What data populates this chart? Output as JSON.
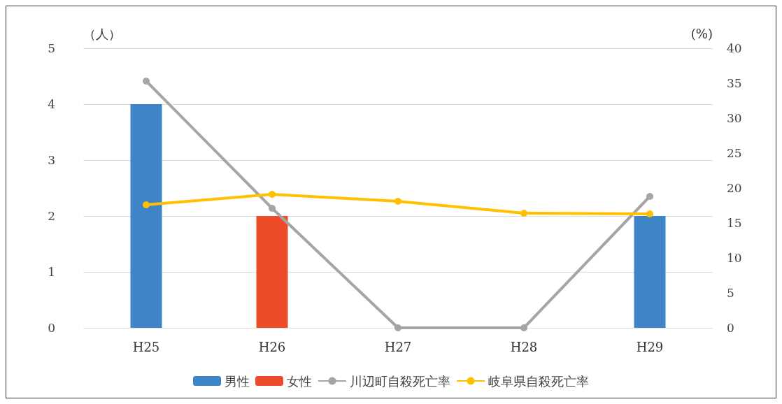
{
  "chart_data": {
    "type": "bar",
    "categories": [
      "H25",
      "H26",
      "H27",
      "H28",
      "H29"
    ],
    "ylabel": "（人）",
    "y2label": "(%)",
    "stacked": true,
    "ylim": [
      0,
      5
    ],
    "yticks": [
      0,
      1,
      2,
      3,
      4,
      5
    ],
    "y2lim": [
      0,
      40
    ],
    "y2ticks": [
      0,
      5,
      10,
      15,
      20,
      25,
      30,
      35,
      40
    ],
    "grid": "y",
    "legend": "bottom",
    "marker": "circle",
    "series": [
      {
        "name": "男性",
        "color": "#3d85c6",
        "values": [
          4,
          null,
          null,
          null,
          2
        ]
      },
      {
        "name": "女性",
        "color": "#ee4b2b",
        "values": [
          null,
          2,
          null,
          null,
          null
        ]
      },
      {
        "name": "川辺町自殺死亡率",
        "type": "line",
        "axis": "y2",
        "color": "#a5a5a5",
        "values": [
          35.3,
          17.1,
          0,
          0,
          18.8
        ]
      },
      {
        "name": "岐阜県自殺死亡率",
        "type": "line",
        "axis": "y2",
        "color": "#ffc000",
        "values": [
          17.6,
          19.1,
          18.1,
          16.4,
          16.3
        ]
      }
    ]
  }
}
